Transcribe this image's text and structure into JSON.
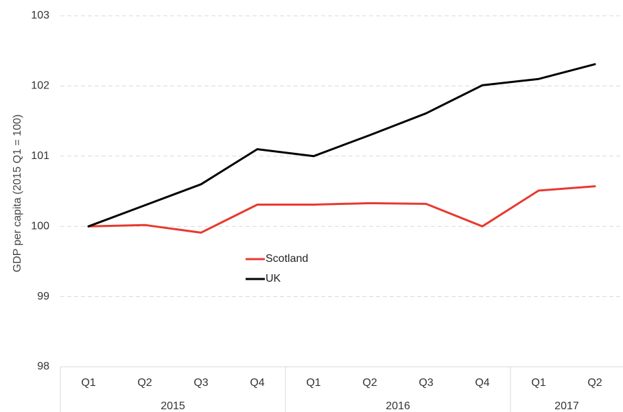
{
  "chart_data": {
    "type": "line",
    "title": "",
    "ylabel": "GDP per capita (2015 Q1 = 100)",
    "xlabel": "",
    "ylim": [
      98,
      103
    ],
    "yticks": [
      "98",
      "99",
      "100",
      "101",
      "102",
      "103"
    ],
    "categories": [
      "Q1",
      "Q2",
      "Q3",
      "Q4",
      "Q1",
      "Q2",
      "Q3",
      "Q4",
      "Q1",
      "Q2"
    ],
    "year_groups": [
      {
        "label": "2015",
        "count": 4
      },
      {
        "label": "2016",
        "count": 4
      },
      {
        "label": "2017",
        "count": 2
      }
    ],
    "grid": true,
    "legend_position": "center",
    "series": [
      {
        "name": "Scotland",
        "color": "#e8392f",
        "values": [
          100.0,
          100.02,
          99.91,
          100.31,
          100.31,
          100.33,
          100.32,
          100.0,
          100.51,
          100.57
        ]
      },
      {
        "name": "UK",
        "color": "#000000",
        "values": [
          100.0,
          100.3,
          100.6,
          101.1,
          101.0,
          101.3,
          101.61,
          102.01,
          102.1,
          102.31
        ]
      }
    ]
  }
}
